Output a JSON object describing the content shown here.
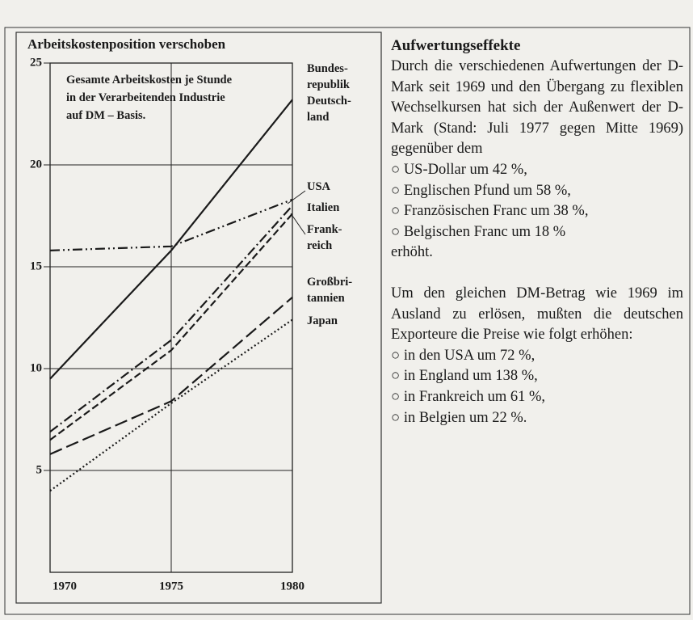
{
  "chart_data": {
    "type": "line",
    "title": "Arbeitskostenposition verschoben",
    "subtitle": "Gesamte Arbeitskosten je Stunde\nin der Verarbeitenden Industrie\nauf DM – Basis.",
    "x": [
      1970,
      1975,
      1980
    ],
    "xlim": [
      1970,
      1980
    ],
    "xticks": [
      1970,
      1975,
      1980
    ],
    "ylim": [
      0,
      25
    ],
    "yticks": [
      5,
      10,
      15,
      20,
      25
    ],
    "grid": true,
    "series": [
      {
        "name": "Bundes-\nrepublik\nDeutsch-\nland",
        "color": "#1a1a1a",
        "style": "solid",
        "values": [
          9.5,
          15.8,
          23.2
        ]
      },
      {
        "name": "USA",
        "color": "#1a1a1a",
        "style": "dash-dot-dot",
        "values": [
          15.8,
          16.0,
          18.3
        ]
      },
      {
        "name": "Italien",
        "color": "#1a1a1a",
        "style": "dash-dot",
        "values": [
          6.9,
          11.4,
          18.0
        ]
      },
      {
        "name": "Frank-\nreich",
        "color": "#1a1a1a",
        "style": "dash",
        "values": [
          6.5,
          10.9,
          17.6
        ]
      },
      {
        "name": "Großbri-\ntannien",
        "color": "#1a1a1a",
        "style": "long-dash",
        "values": [
          5.8,
          8.4,
          13.5
        ]
      },
      {
        "name": "Japan",
        "color": "#1a1a1a",
        "style": "dotted",
        "values": [
          4.0,
          8.3,
          12.4
        ]
      }
    ]
  },
  "article": {
    "heading": "Aufwertungseffekte",
    "paragraph1": "Durch die verschiedenen Aufwertungen der D-Mark seit 1969 und den Übergang zu flexiblen Wechselkursen hat sich der Außenwert der D-Mark (Stand: Juli 1977 gegen Mitte 1969) gegenüber dem",
    "bullets1": [
      "US-Dollar um 42 %,",
      "Englischen Pfund um 58 %,",
      "Französischen Franc um 38 %,",
      "Belgischen Franc um 18 %"
    ],
    "closing1": "erhöht.",
    "paragraph2": "Um den gleichen DM-Betrag wie 1969 im Ausland zu erlösen, mußten die deutschen Exporteure die Preise wie folgt erhöhen:",
    "bullets2": [
      "in den USA um 72 %,",
      "in England um 138 %,",
      "in Frankreich um 61 %,",
      "in Belgien um 22 %."
    ]
  }
}
